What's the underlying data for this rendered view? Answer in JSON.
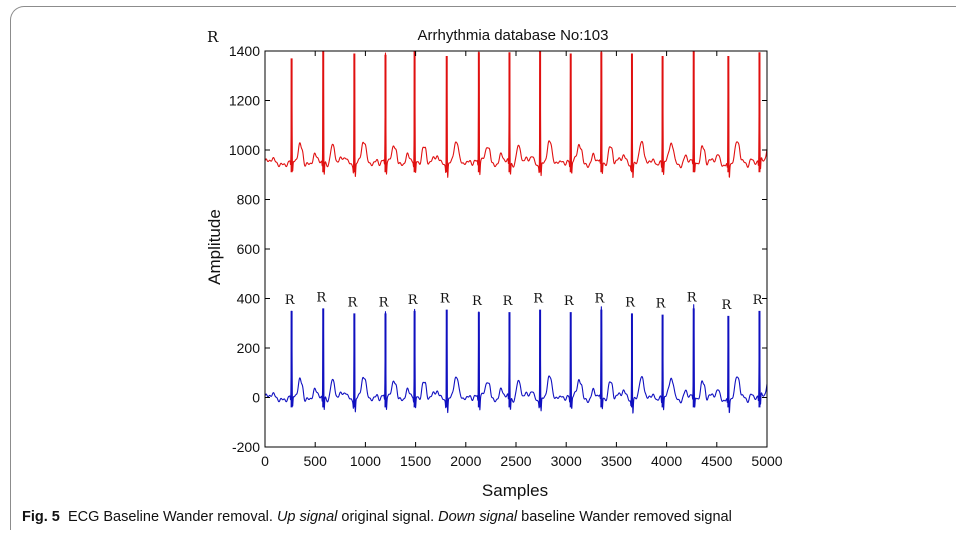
{
  "chart_data": {
    "type": "line",
    "title": "Arrhythmia database No:103",
    "xlabel": "Samples",
    "ylabel": "Amplitude",
    "xlim": [
      0,
      5000
    ],
    "ylim": [
      -200,
      1400
    ],
    "xticks": [
      0,
      500,
      1000,
      1500,
      2000,
      2500,
      3000,
      3500,
      4000,
      4500,
      5000
    ],
    "yticks": [
      -200,
      0,
      200,
      400,
      600,
      800,
      1000,
      1200,
      1400
    ],
    "grid": false,
    "corner_label": "R",
    "peak_label": "R",
    "series": [
      {
        "color": "#e01010",
        "baseline": 950,
        "r_peaks": [
          {
            "x": 265,
            "y": 1370
          },
          {
            "x": 580,
            "y": 1400
          },
          {
            "x": 890,
            "y": 1390
          },
          {
            "x": 1200,
            "y": 1385
          },
          {
            "x": 1490,
            "y": 1400
          },
          {
            "x": 1810,
            "y": 1380
          },
          {
            "x": 2130,
            "y": 1395
          },
          {
            "x": 2435,
            "y": 1395
          },
          {
            "x": 2740,
            "y": 1400
          },
          {
            "x": 3045,
            "y": 1390
          },
          {
            "x": 3350,
            "y": 1395
          },
          {
            "x": 3655,
            "y": 1390
          },
          {
            "x": 3960,
            "y": 1380
          },
          {
            "x": 4270,
            "y": 1400
          },
          {
            "x": 4615,
            "y": 1380
          },
          {
            "x": 4925,
            "y": 1395
          }
        ]
      },
      {
        "color": "#1010c0",
        "baseline": 0,
        "r_peaks": [
          {
            "x": 265,
            "y": 350
          },
          {
            "x": 580,
            "y": 360
          },
          {
            "x": 890,
            "y": 340
          },
          {
            "x": 1200,
            "y": 340
          },
          {
            "x": 1490,
            "y": 350
          },
          {
            "x": 1810,
            "y": 355
          },
          {
            "x": 2130,
            "y": 345
          },
          {
            "x": 2435,
            "y": 345
          },
          {
            "x": 2740,
            "y": 355
          },
          {
            "x": 3045,
            "y": 345
          },
          {
            "x": 3350,
            "y": 355
          },
          {
            "x": 3655,
            "y": 340
          },
          {
            "x": 3960,
            "y": 335
          },
          {
            "x": 4270,
            "y": 360
          },
          {
            "x": 4615,
            "y": 330
          },
          {
            "x": 4925,
            "y": 350
          }
        ]
      }
    ]
  },
  "caption": {
    "figure_number": "Fig. 5",
    "text_1": "ECG Baseline Wander removal. ",
    "italic_1": "Up signal",
    "text_2": " original signal. ",
    "italic_2": "Down signal",
    "text_3": " baseline Wander removed signal"
  }
}
